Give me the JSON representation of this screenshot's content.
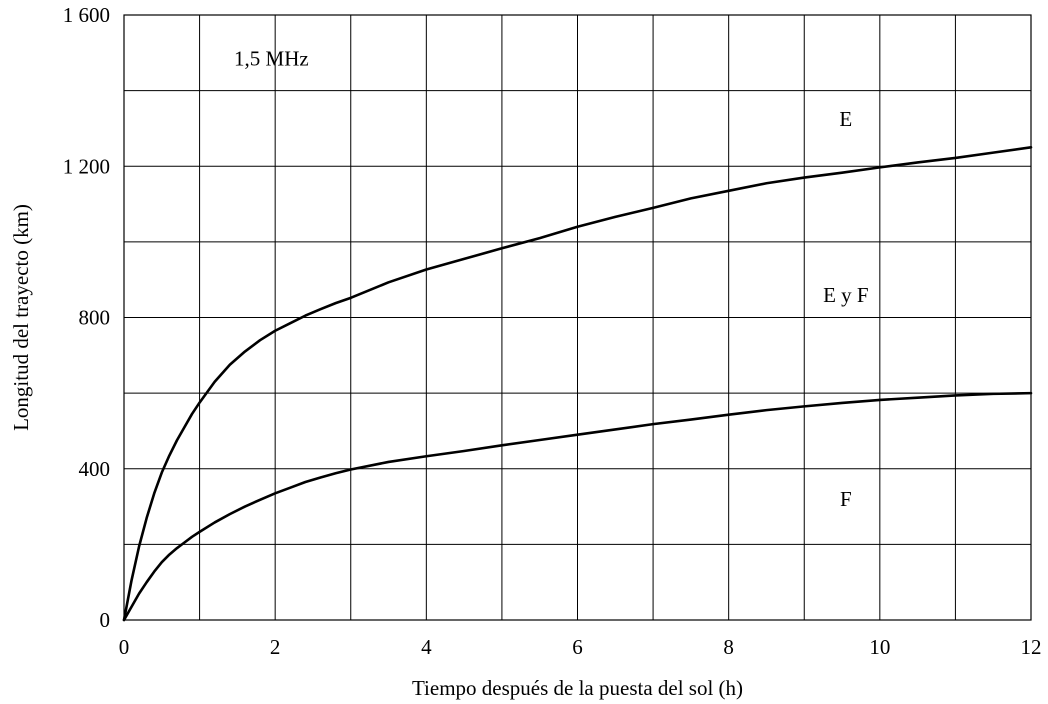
{
  "chart_data": {
    "type": "line",
    "xlabel": "Tiempo después de la puesta del sol  (h)",
    "ylabel": "Longitud del trayecto (km)",
    "xlim": [
      0,
      12
    ],
    "ylim": [
      0,
      1600
    ],
    "x_major_ticks": [
      0,
      2,
      4,
      6,
      8,
      10,
      12
    ],
    "x_tick_labels": [
      "0",
      "2",
      "4",
      "6",
      "8",
      "10",
      "12"
    ],
    "y_major_ticks": [
      0,
      400,
      800,
      1200,
      1600
    ],
    "y_tick_labels": [
      "0",
      "400",
      "800",
      "1 200",
      "1 600"
    ],
    "x_grid_step": 1,
    "y_grid_step": 200,
    "grid": true,
    "annotations": [
      {
        "text": "1,5 MHz",
        "x": 1.95,
        "y": 1485
      },
      {
        "text": "E",
        "x": 9.55,
        "y": 1325
      },
      {
        "text": "E y F",
        "x": 9.55,
        "y": 860
      },
      {
        "text": "F",
        "x": 9.55,
        "y": 320
      }
    ],
    "series": [
      {
        "x": [
          0,
          0.1,
          0.2,
          0.3,
          0.4,
          0.5,
          0.6,
          0.7,
          0.8,
          0.9,
          1.0,
          1.2,
          1.4,
          1.6,
          1.8,
          2.0,
          2.2,
          2.4,
          2.6,
          2.8,
          3.0,
          3.5,
          4.0,
          4.5,
          5.0,
          5.5,
          6.0,
          6.5,
          7.0,
          7.5,
          8.0,
          8.5,
          9.0,
          9.5,
          10.0,
          10.5,
          11.0,
          11.5,
          12.0
        ],
        "values": [
          0,
          105,
          195,
          270,
          335,
          390,
          435,
          475,
          510,
          545,
          575,
          630,
          675,
          710,
          740,
          765,
          785,
          805,
          822,
          838,
          852,
          893,
          927,
          955,
          983,
          1010,
          1040,
          1066,
          1090,
          1115,
          1135,
          1155,
          1170,
          1183,
          1197,
          1210,
          1222,
          1236,
          1250
        ]
      },
      {
        "x": [
          0,
          0.1,
          0.2,
          0.3,
          0.4,
          0.5,
          0.6,
          0.7,
          0.8,
          0.9,
          1.0,
          1.2,
          1.4,
          1.6,
          1.8,
          2.0,
          2.2,
          2.4,
          2.6,
          2.8,
          3.0,
          3.5,
          4.0,
          4.5,
          5.0,
          5.5,
          6.0,
          6.5,
          7.0,
          7.5,
          8.0,
          8.5,
          9.0,
          9.5,
          10.0,
          10.5,
          11.0,
          11.5,
          12.0
        ],
        "values": [
          0,
          35,
          70,
          100,
          128,
          153,
          173,
          190,
          205,
          220,
          233,
          258,
          280,
          300,
          318,
          335,
          350,
          365,
          377,
          388,
          398,
          418,
          433,
          447,
          462,
          476,
          490,
          504,
          518,
          530,
          543,
          555,
          565,
          574,
          582,
          588,
          594,
          598,
          600
        ]
      }
    ]
  }
}
